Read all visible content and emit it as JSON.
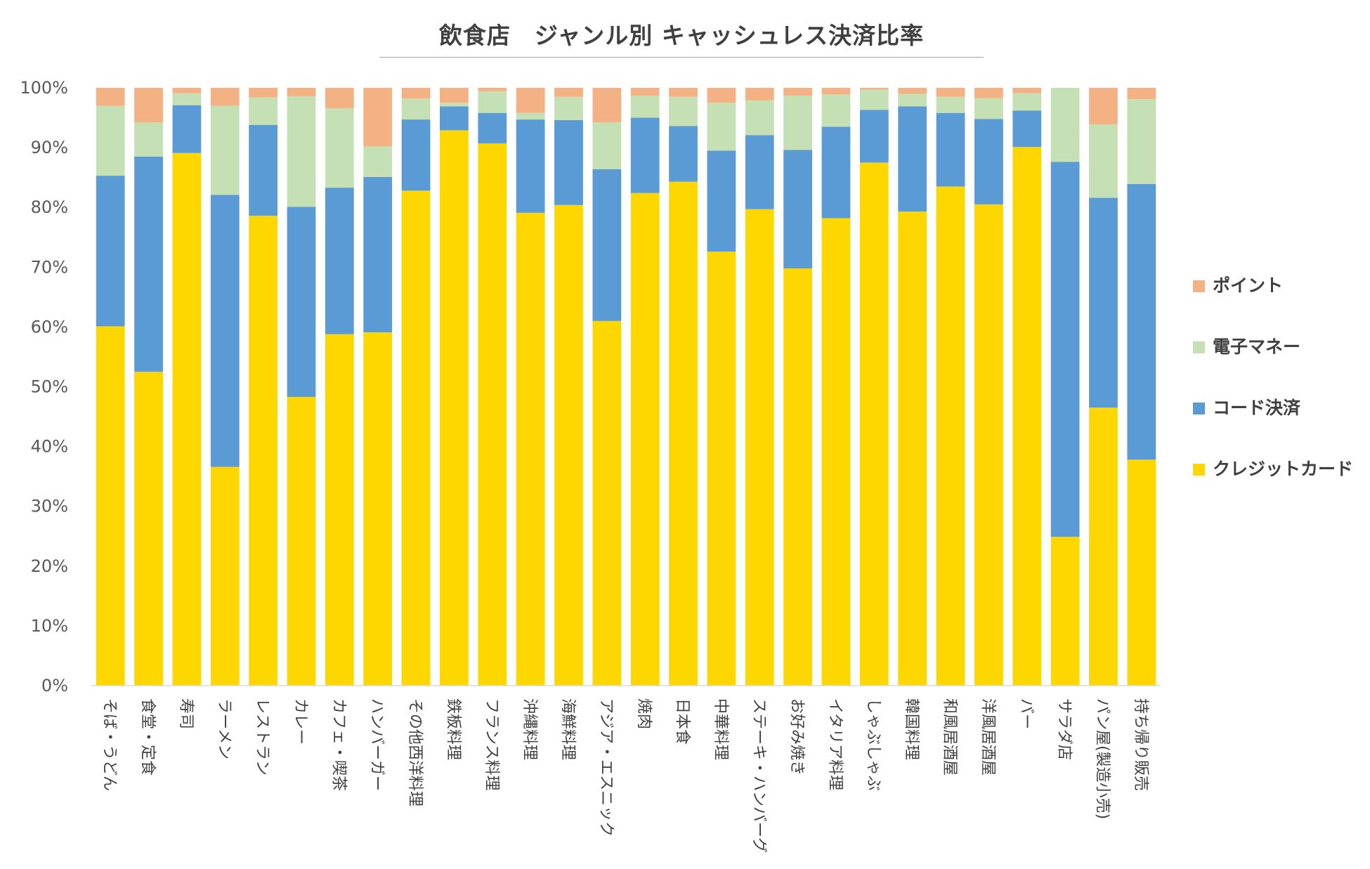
{
  "chart_data": {
    "type": "bar",
    "stacked": true,
    "title": "飲食店　ジャンル別 キャッシュレス決済比率",
    "xlabel": "",
    "ylabel": "",
    "ylim": [
      0,
      100
    ],
    "yticks": [
      "0%",
      "10%",
      "20%",
      "30%",
      "40%",
      "50%",
      "60%",
      "70%",
      "80%",
      "90%",
      "100%"
    ],
    "legend_position": "right",
    "categories": [
      "そば・うどん",
      "食堂・定食",
      "寿司",
      "ラーメン",
      "レストラン",
      "カレー",
      "カフェ・喫茶",
      "ハンバーガー",
      "その他西洋料理",
      "鉄板料理",
      "フランス料理",
      "沖縄料理",
      "海鮮料理",
      "アジア・エスニック",
      "焼肉",
      "日本食",
      "中華料理",
      "ステーキ・ハンバーグ",
      "お好み焼き",
      "イタリア料理",
      "しゃぶしゃぶ",
      "韓国料理",
      "和風居酒屋",
      "洋風居酒屋",
      "バー",
      "サラダ店",
      "パン屋(製造小売)",
      "持ち帰り販売"
    ],
    "series": [
      {
        "name": "クレジットカード",
        "color": "#FFD700",
        "values": [
          60.1,
          52.5,
          89.1,
          36.6,
          78.6,
          48.3,
          58.8,
          59.1,
          82.8,
          92.9,
          90.7,
          79.1,
          80.4,
          61.0,
          82.4,
          84.3,
          72.6,
          79.7,
          69.8,
          78.2,
          87.5,
          79.3,
          83.5,
          80.5,
          90.1,
          24.9,
          46.5,
          37.8
        ]
      },
      {
        "name": "コード決済",
        "color": "#5B9BD5",
        "values": [
          25.2,
          36.0,
          8.0,
          45.5,
          15.2,
          31.8,
          24.5,
          26.0,
          11.9,
          4.0,
          5.1,
          15.6,
          14.2,
          25.4,
          12.6,
          9.3,
          16.9,
          12.4,
          19.8,
          15.3,
          8.8,
          17.6,
          12.3,
          14.3,
          6.1,
          62.7,
          35.1,
          46.1
        ]
      },
      {
        "name": "電子マネー",
        "color": "#C5E0B4",
        "values": [
          11.7,
          5.7,
          2.0,
          14.9,
          4.6,
          18.5,
          13.3,
          5.1,
          3.5,
          0.6,
          3.6,
          1.1,
          3.9,
          7.8,
          3.7,
          4.9,
          8.0,
          5.8,
          9.1,
          5.4,
          3.4,
          2.1,
          2.7,
          3.5,
          2.9,
          12.4,
          12.3,
          14.2
        ]
      },
      {
        "name": "ポイント",
        "color": "#F4B183",
        "values": [
          3.0,
          5.8,
          0.9,
          3.0,
          1.6,
          1.4,
          3.4,
          9.8,
          1.8,
          2.5,
          0.6,
          4.2,
          1.5,
          5.8,
          1.3,
          1.5,
          2.5,
          2.1,
          1.3,
          1.1,
          0.3,
          1.0,
          1.5,
          1.7,
          0.9,
          0.0,
          6.1,
          1.9
        ]
      }
    ]
  }
}
